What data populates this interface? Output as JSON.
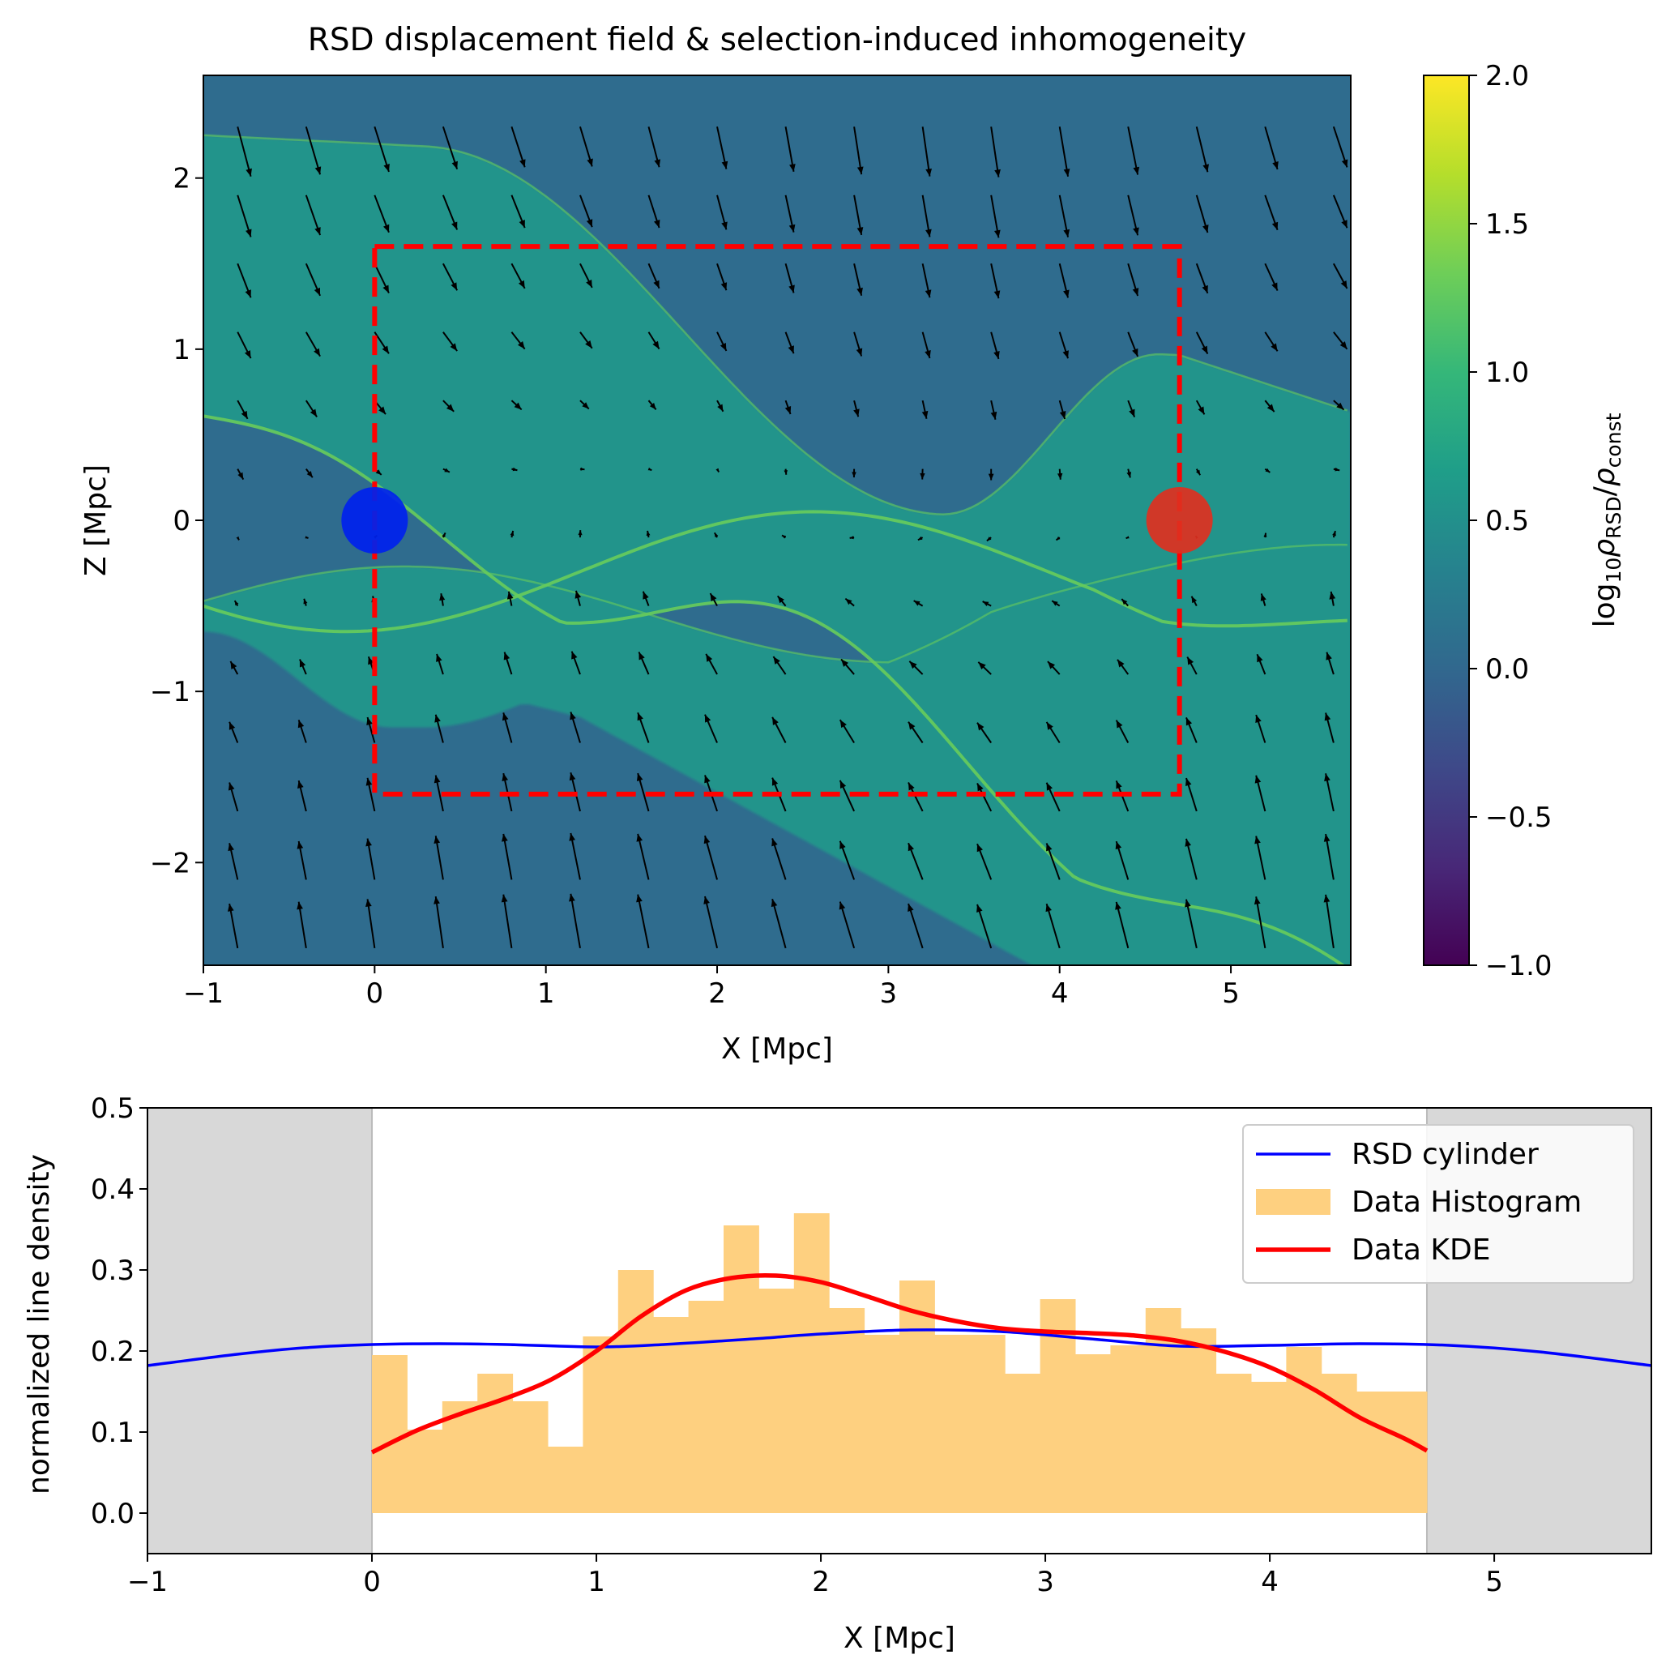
{
  "chart_data": [
    {
      "type": "heatmap",
      "title": "RSD displacement field & selection-induced inhomogeneity",
      "xlabel": "X [Mpc]",
      "ylabel": "Z [Mpc]",
      "xlim": [
        -1,
        5.7
      ],
      "ylim": [
        -2.6,
        2.6
      ],
      "xticks": [
        -1,
        0,
        1,
        2,
        3,
        4,
        5
      ],
      "xtick_labels": [
        "−1",
        "0",
        "1",
        "2",
        "3",
        "4",
        "5"
      ],
      "yticks": [
        -2,
        -1,
        0,
        1,
        2
      ],
      "ytick_labels": [
        "−2",
        "−1",
        "0",
        "1",
        "2"
      ],
      "colorbar": {
        "label_prefix": "log",
        "label_sub1": "10",
        "label_rho1": "ρ",
        "label_sub2": "RSD",
        "label_slash": "/",
        "label_rho2": "ρ",
        "label_sub3": "const",
        "range": [
          -1.0,
          2.0
        ],
        "ticks": [
          -1.0,
          -0.5,
          0.0,
          0.5,
          1.0,
          1.5,
          2.0
        ],
        "tick_labels": [
          "−1.0",
          "−0.5",
          "0.0",
          "0.5",
          "1.0",
          "1.5",
          "2.0"
        ],
        "colormap": [
          "#440154",
          "#482878",
          "#3e4989",
          "#31688e",
          "#26828e",
          "#1f9e89",
          "#35b779",
          "#6ece58",
          "#b5de2b",
          "#fde725"
        ]
      },
      "background_level": 0.05,
      "band_level": 0.55,
      "caustic_level": 1.3,
      "selection_box": {
        "x": [
          0,
          4.7
        ],
        "z": [
          -1.6,
          1.6
        ],
        "color": "#ff0000",
        "style": "dashed"
      },
      "markers": [
        {
          "name": "observer",
          "x": 0,
          "z": 0,
          "color": "#0022ee"
        },
        {
          "name": "target",
          "x": 4.7,
          "z": 0,
          "color": "#e03020"
        }
      ],
      "quiver": {
        "x_start": -0.8,
        "x_step": 0.4,
        "z_start": -2.5,
        "z_step": 0.4,
        "color": "#000000"
      }
    },
    {
      "type": "line",
      "xlabel": "X [Mpc]",
      "ylabel": "normalized line density",
      "xlim": [
        -1,
        5.7
      ],
      "ylim": [
        -0.05,
        0.5
      ],
      "xticks": [
        -1,
        0,
        1,
        2,
        3,
        4,
        5
      ],
      "xtick_labels": [
        "−1",
        "0",
        "1",
        "2",
        "3",
        "4",
        "5"
      ],
      "yticks": [
        0.0,
        0.1,
        0.2,
        0.3,
        0.4,
        0.5
      ],
      "ytick_labels": [
        "0.0",
        "0.1",
        "0.2",
        "0.3",
        "0.4",
        "0.5"
      ],
      "shaded_regions": [
        [
          -1,
          0
        ],
        [
          4.7,
          5.7
        ]
      ],
      "legend": [
        "RSD cylinder",
        "Data Histogram",
        "Data KDE"
      ],
      "series": [
        {
          "name": "RSD cylinder",
          "type": "line",
          "color": "#0000ff",
          "x": [
            -1.0,
            -0.6,
            -0.3,
            0.0,
            0.3,
            0.6,
            1.0,
            1.3,
            1.7,
            2.0,
            2.4,
            2.8,
            3.2,
            3.6,
            4.0,
            4.4,
            4.8,
            5.2,
            5.7
          ],
          "y": [
            0.182,
            0.196,
            0.204,
            0.208,
            0.209,
            0.208,
            0.205,
            0.208,
            0.215,
            0.221,
            0.226,
            0.224,
            0.215,
            0.206,
            0.207,
            0.209,
            0.207,
            0.199,
            0.182
          ]
        },
        {
          "name": "Data Histogram",
          "type": "hist",
          "color": "#fed080",
          "bin_start": 0.0,
          "bin_width": 0.156667,
          "values": [
            0.195,
            0.103,
            0.138,
            0.172,
            0.138,
            0.082,
            0.218,
            0.3,
            0.242,
            0.262,
            0.355,
            0.277,
            0.37,
            0.253,
            0.22,
            0.287,
            0.22,
            0.22,
            0.172,
            0.264,
            0.196,
            0.207,
            0.253,
            0.228,
            0.172,
            0.162,
            0.205,
            0.172,
            0.15,
            0.15
          ]
        },
        {
          "name": "Data KDE",
          "type": "line",
          "color": "#ff0000",
          "x": [
            0.0,
            0.2,
            0.4,
            0.6,
            0.8,
            1.0,
            1.2,
            1.4,
            1.6,
            1.8,
            2.0,
            2.2,
            2.4,
            2.6,
            2.8,
            3.0,
            3.2,
            3.4,
            3.6,
            3.8,
            4.0,
            4.2,
            4.4,
            4.6,
            4.7
          ],
          "y": [
            0.075,
            0.102,
            0.123,
            0.142,
            0.165,
            0.2,
            0.243,
            0.275,
            0.29,
            0.293,
            0.285,
            0.268,
            0.25,
            0.237,
            0.228,
            0.224,
            0.222,
            0.219,
            0.212,
            0.199,
            0.18,
            0.152,
            0.118,
            0.092,
            0.077
          ]
        }
      ]
    }
  ]
}
